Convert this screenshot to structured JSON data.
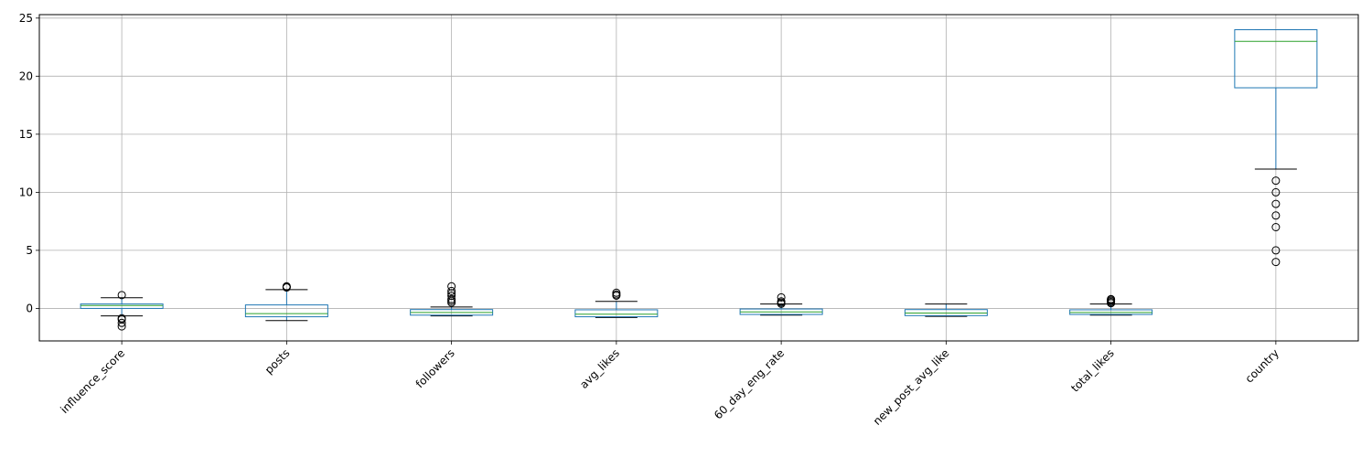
{
  "chart_data": {
    "type": "boxplot",
    "title": "",
    "xlabel": "",
    "ylabel": "",
    "ylim": [
      -2.8,
      25.3
    ],
    "yticks": [
      0,
      5,
      10,
      15,
      20,
      25
    ],
    "grid": true,
    "colors": {
      "box": "#1f77b4",
      "median": "#2ca02c",
      "whisker_cap": "#000000",
      "grid": "#b0b0b0"
    },
    "categories": [
      "influence_score",
      "posts",
      "followers",
      "avg_likes",
      "60_day_eng_rate",
      "new_post_avg_like",
      "total_likes",
      "country"
    ],
    "boxes": [
      {
        "q1": 0.0,
        "median": 0.25,
        "q3": 0.38,
        "whislo": -0.65,
        "whishi": 0.92,
        "fliers": [
          1.15,
          -0.85,
          -0.95,
          -1.25,
          -1.55
        ]
      },
      {
        "q1": -0.72,
        "median": -0.45,
        "q3": 0.3,
        "whislo": -1.05,
        "whishi": 1.62,
        "fliers": [
          1.8,
          1.85,
          1.9
        ]
      },
      {
        "q1": -0.58,
        "median": -0.35,
        "q3": -0.1,
        "whislo": -0.65,
        "whishi": 0.12,
        "fliers": [
          0.5,
          0.65,
          0.8,
          1.1,
          1.3,
          1.5,
          1.9
        ]
      },
      {
        "q1": -0.72,
        "median": -0.5,
        "q3": -0.12,
        "whislo": -0.78,
        "whishi": 0.6,
        "fliers": [
          1.1,
          1.2,
          1.35
        ]
      },
      {
        "q1": -0.52,
        "median": -0.3,
        "q3": -0.05,
        "whislo": -0.58,
        "whishi": 0.38,
        "fliers": [
          0.4,
          0.5,
          0.6,
          0.95
        ]
      },
      {
        "q1": -0.62,
        "median": -0.4,
        "q3": -0.1,
        "whislo": -0.68,
        "whishi": 0.38,
        "fliers": []
      },
      {
        "q1": -0.52,
        "median": -0.35,
        "q3": -0.12,
        "whislo": -0.58,
        "whishi": 0.38,
        "fliers": [
          0.45,
          0.55,
          0.65,
          0.75,
          0.8
        ]
      },
      {
        "q1": 19.0,
        "median": 23.0,
        "q3": 24.0,
        "whislo": 12.0,
        "whishi": 24.0,
        "fliers": [
          11,
          10,
          9,
          8,
          7,
          5,
          4
        ]
      }
    ]
  }
}
